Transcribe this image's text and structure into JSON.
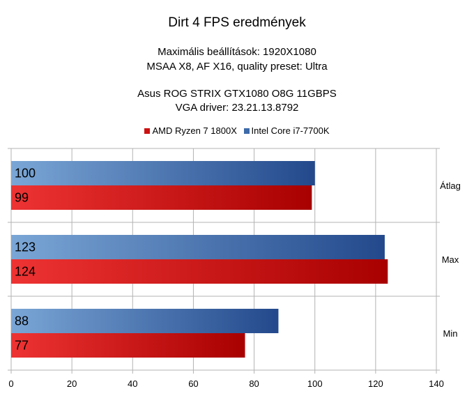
{
  "chart_data": {
    "type": "bar",
    "orientation": "horizontal",
    "title": "Dirt 4 FPS eredmények",
    "subtitle_lines": [
      "Maximális beállítások: 1920X1080",
      "MSAA X8, AF X16, quality preset: Ultra",
      "Asus ROG STRIX GTX1080 O8G 11GBPS",
      "VGA driver: 23.21.13.8792"
    ],
    "categories": [
      "Átlag",
      "Max",
      "Min"
    ],
    "series": [
      {
        "name": "AMD Ryzen 7 1800X",
        "values": [
          99,
          124,
          77
        ],
        "color": "#cc1111"
      },
      {
        "name": "Intel Core i7-7700K",
        "values": [
          100,
          123,
          88
        ],
        "color": "#3d6aa8"
      }
    ],
    "xlim": [
      0,
      140
    ],
    "xticks": [
      "0",
      "20",
      "40",
      "60",
      "80",
      "100",
      "120",
      "140"
    ],
    "grid": true,
    "legend_position": "top"
  }
}
